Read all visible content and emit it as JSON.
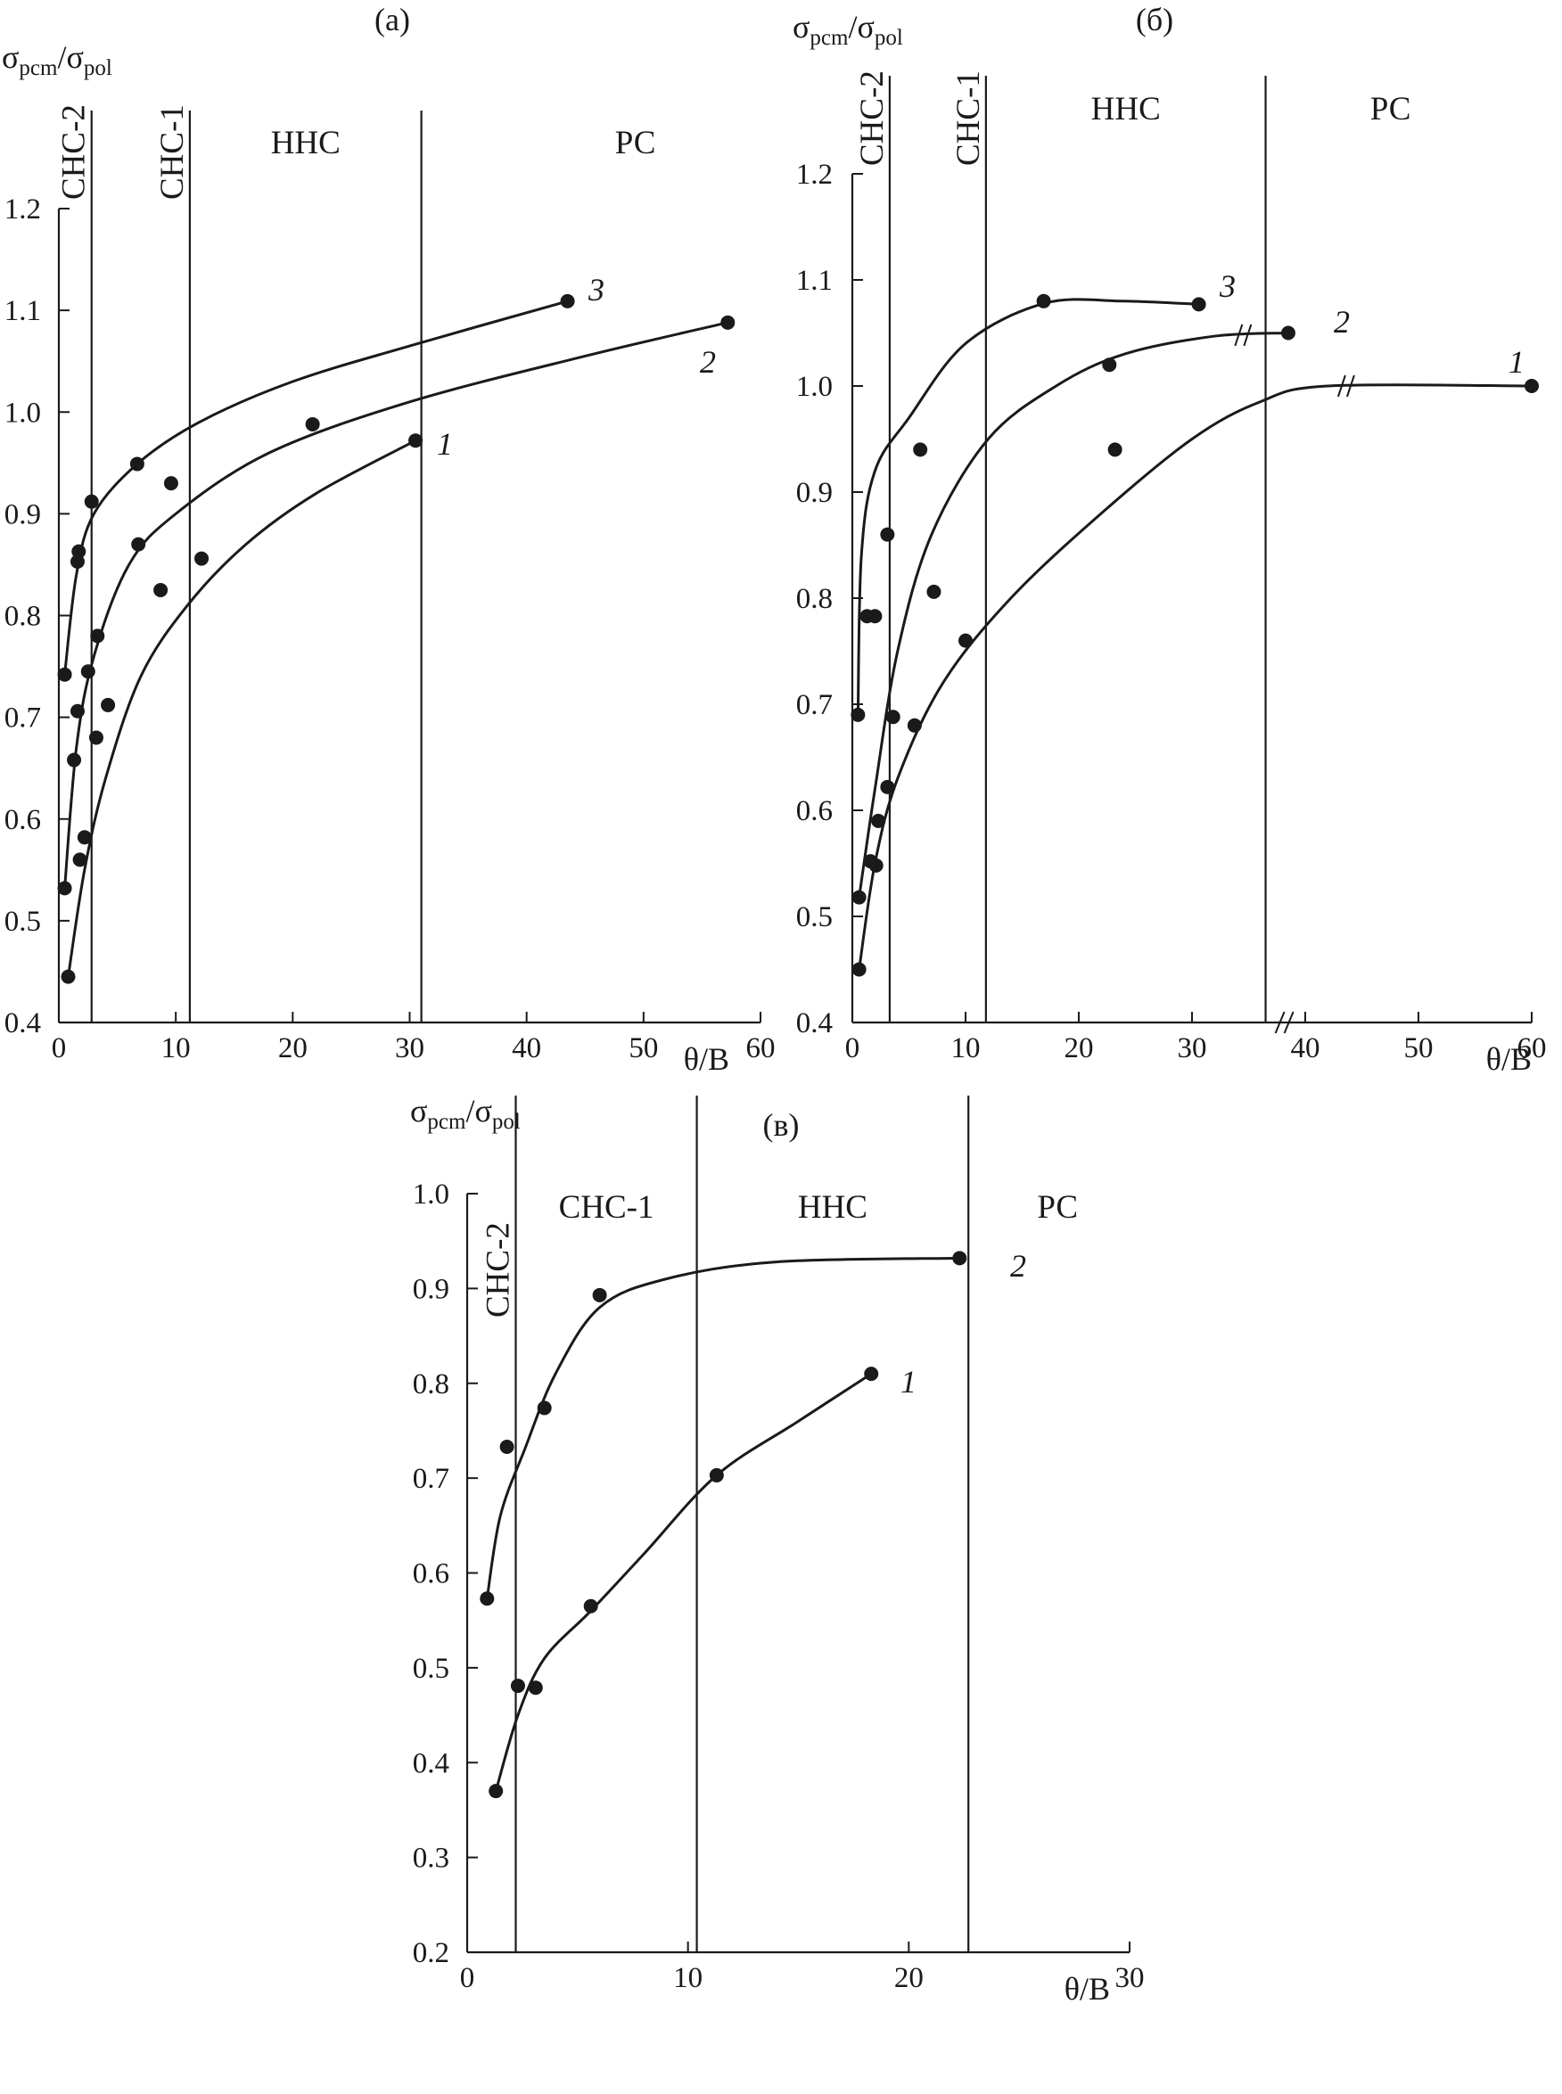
{
  "figure": {
    "y_label_main": "σ",
    "y_label_num_sub": "pcm",
    "y_label_sep": "/",
    "y_label_den_sub": "pol",
    "x_label": "θ/B"
  },
  "chart_data": [
    {
      "id": "a",
      "type": "line",
      "title": "(а)",
      "xlabel": "θ/B",
      "ylabel": "σpcm/σpol",
      "xlim": [
        0,
        60
      ],
      "ylim": [
        0.4,
        1.2
      ],
      "x_ticks": [
        "0",
        "10",
        "20",
        "30",
        "40",
        "50",
        "60"
      ],
      "y_ticks": [
        "0.4",
        "0.5",
        "0.6",
        "0.7",
        "0.8",
        "0.9",
        "1.0",
        "1.1",
        "1.2"
      ],
      "grid": false,
      "regions": [
        {
          "label": "СНС-2",
          "vertical": true
        },
        {
          "label": "СНС-1",
          "vertical": true
        },
        {
          "label": "ННС",
          "vertical": false
        },
        {
          "label": "РС",
          "vertical": false
        }
      ],
      "region_boundaries": [
        2.8,
        11.2,
        31
      ],
      "series": [
        {
          "name": "1",
          "points": [
            [
              0.8,
              0.445
            ],
            [
              1.8,
              0.56
            ],
            [
              2.2,
              0.582
            ],
            [
              3.2,
              0.68
            ],
            [
              4.2,
              0.712
            ],
            [
              8.7,
              0.825
            ],
            [
              12.2,
              0.856
            ],
            [
              30.5,
              0.972
            ]
          ],
          "curve": [
            [
              0.8,
              0.445
            ],
            [
              2.2,
              0.55
            ],
            [
              4,
              0.64
            ],
            [
              7,
              0.74
            ],
            [
              11,
              0.81
            ],
            [
              16,
              0.87
            ],
            [
              22,
              0.92
            ],
            [
              30.5,
              0.972
            ]
          ]
        },
        {
          "name": "2",
          "points": [
            [
              0.5,
              0.532
            ],
            [
              1.3,
              0.658
            ],
            [
              1.6,
              0.706
            ],
            [
              2.5,
              0.745
            ],
            [
              3.3,
              0.78
            ],
            [
              6.8,
              0.87
            ],
            [
              9.6,
              0.93
            ],
            [
              21.7,
              0.988
            ],
            [
              57.2,
              1.088
            ]
          ],
          "curve": [
            [
              0.5,
              0.532
            ],
            [
              1.5,
              0.67
            ],
            [
              3,
              0.76
            ],
            [
              6,
              0.85
            ],
            [
              10,
              0.9
            ],
            [
              18,
              0.96
            ],
            [
              30,
              1.01
            ],
            [
              45,
              1.055
            ],
            [
              57.2,
              1.088
            ]
          ]
        },
        {
          "name": "3",
          "points": [
            [
              0.5,
              0.742
            ],
            [
              1.6,
              0.853
            ],
            [
              1.7,
              0.863
            ],
            [
              2.8,
              0.912
            ],
            [
              6.7,
              0.949
            ],
            [
              43.5,
              1.109
            ]
          ],
          "curve": [
            [
              0.5,
              0.742
            ],
            [
              1.5,
              0.84
            ],
            [
              3,
              0.9
            ],
            [
              6.7,
              0.949
            ],
            [
              12,
              0.99
            ],
            [
              20,
              1.03
            ],
            [
              30,
              1.065
            ],
            [
              43.5,
              1.109
            ]
          ]
        }
      ]
    },
    {
      "id": "b",
      "type": "line",
      "title": "(б)",
      "xlabel": "θ/B",
      "ylabel": "σpcm/σpol",
      "xlim": [
        0,
        60
      ],
      "ylim": [
        0.4,
        1.2
      ],
      "x_ticks": [
        "0",
        "10",
        "20",
        "30",
        "40",
        "50",
        "60"
      ],
      "y_ticks": [
        "0.4",
        "0.5",
        "0.6",
        "0.7",
        "0.8",
        "0.9",
        "1.0",
        "1.1",
        "1.2"
      ],
      "grid": false,
      "axis_break": "between 30 and 40 on x axis",
      "regions": [
        {
          "label": "СНС-2",
          "vertical": true
        },
        {
          "label": "СНС-1",
          "vertical": true
        },
        {
          "label": "ННС",
          "vertical": false
        },
        {
          "label": "РС",
          "vertical": false
        }
      ],
      "region_boundaries": [
        3.3,
        11.8,
        36.5
      ],
      "series": [
        {
          "name": "1",
          "points": [
            [
              0.6,
              0.45
            ],
            [
              2.1,
              0.548
            ],
            [
              2.3,
              0.59
            ],
            [
              3.1,
              0.622
            ],
            [
              5.5,
              0.68
            ],
            [
              10,
              0.76
            ],
            [
              23.2,
              0.94
            ],
            [
              60,
              1.0
            ]
          ],
          "curve": [
            [
              0.6,
              0.45
            ],
            [
              2,
              0.55
            ],
            [
              4,
              0.63
            ],
            [
              8,
              0.72
            ],
            [
              14,
              0.8
            ],
            [
              22,
              0.88
            ],
            [
              30,
              0.95
            ],
            [
              36,
              0.985
            ],
            [
              42,
              1.0
            ],
            [
              60,
              1.0
            ]
          ]
        },
        {
          "name": "2",
          "points": [
            [
              0.6,
              0.518
            ],
            [
              1.6,
              0.552
            ],
            [
              3.1,
              0.86
            ],
            [
              3.6,
              0.688
            ],
            [
              7.2,
              0.806
            ],
            [
              22.7,
              1.02
            ],
            [
              38.5,
              1.05
            ]
          ],
          "curve": [
            [
              0.6,
              0.518
            ],
            [
              2,
              0.62
            ],
            [
              4,
              0.75
            ],
            [
              7,
              0.86
            ],
            [
              12,
              0.95
            ],
            [
              18,
              1.0
            ],
            [
              24,
              1.03
            ],
            [
              32,
              1.047
            ],
            [
              38.5,
              1.05
            ]
          ]
        },
        {
          "name": "3",
          "points": [
            [
              0.5,
              0.69
            ],
            [
              1.3,
              0.783
            ],
            [
              2.0,
              0.783
            ],
            [
              6,
              0.94
            ],
            [
              16.9,
              1.08
            ],
            [
              30.6,
              1.077
            ]
          ],
          "curve": [
            [
              0.5,
              0.69
            ],
            [
              0.8,
              0.84
            ],
            [
              2,
              0.92
            ],
            [
              5,
              0.97
            ],
            [
              10,
              1.04
            ],
            [
              17,
              1.078
            ],
            [
              24,
              1.08
            ],
            [
              30.6,
              1.077
            ]
          ]
        }
      ]
    },
    {
      "id": "c",
      "type": "line",
      "title": "(в)",
      "xlabel": "θ/B",
      "ylabel": "σpcm/σpol",
      "xlim": [
        0,
        30
      ],
      "ylim": [
        0.2,
        1.0
      ],
      "x_ticks": [
        "0",
        "10",
        "20",
        "30"
      ],
      "y_ticks": [
        "0.2",
        "0.3",
        "0.4",
        "0.5",
        "0.6",
        "0.7",
        "0.8",
        "0.9",
        "1.0"
      ],
      "grid": false,
      "regions": [
        {
          "label": "СНС-2",
          "vertical": true
        },
        {
          "label": "СНС-1",
          "vertical": false
        },
        {
          "label": "ННС",
          "vertical": false
        },
        {
          "label": "РС",
          "vertical": false
        }
      ],
      "region_boundaries": [
        2.2,
        10.4,
        22.7
      ],
      "series": [
        {
          "name": "1",
          "points": [
            [
              1.3,
              0.37
            ],
            [
              2.3,
              0.481
            ],
            [
              3.1,
              0.479
            ],
            [
              5.6,
              0.565
            ],
            [
              11.3,
              0.703
            ],
            [
              18.3,
              0.81
            ]
          ],
          "curve": [
            [
              1.3,
              0.37
            ],
            [
              2.3,
              0.45
            ],
            [
              3.5,
              0.51
            ],
            [
              5.6,
              0.56
            ],
            [
              8,
              0.62
            ],
            [
              11.3,
              0.703
            ],
            [
              15,
              0.76
            ],
            [
              18.3,
              0.81
            ]
          ]
        },
        {
          "name": "2",
          "points": [
            [
              0.9,
              0.573
            ],
            [
              1.8,
              0.733
            ],
            [
              3.5,
              0.774
            ],
            [
              6,
              0.893
            ],
            [
              22.3,
              0.932
            ]
          ],
          "curve": [
            [
              0.9,
              0.573
            ],
            [
              1.5,
              0.66
            ],
            [
              2.6,
              0.73
            ],
            [
              4,
              0.81
            ],
            [
              6,
              0.88
            ],
            [
              9,
              0.91
            ],
            [
              14,
              0.928
            ],
            [
              22.3,
              0.932
            ]
          ]
        }
      ]
    }
  ]
}
